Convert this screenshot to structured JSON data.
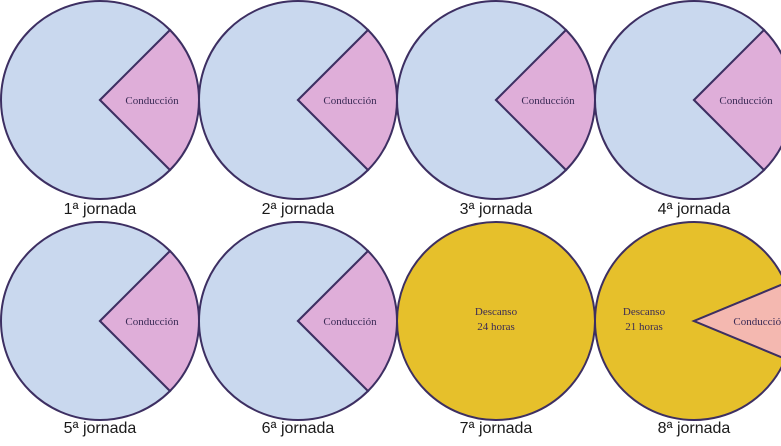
{
  "chart_data": {
    "type": "pie",
    "colors": {
      "rest_light": "#c9d8ee",
      "driving": "#dfaed9",
      "rest_weekly": "#e6c02b",
      "driving_weekly": "#f4b8b0",
      "outline": "#3d2f62"
    },
    "charts": [
      {
        "label": "1ª jornada",
        "slices": [
          {
            "name": "",
            "value": 270,
            "color": "rest_light"
          },
          {
            "name": "Conducción",
            "value": 90,
            "color": "driving"
          }
        ]
      },
      {
        "label": "2ª jornada",
        "slices": [
          {
            "name": "",
            "value": 270,
            "color": "rest_light"
          },
          {
            "name": "Conducción",
            "value": 90,
            "color": "driving"
          }
        ]
      },
      {
        "label": "3ª jornada",
        "slices": [
          {
            "name": "",
            "value": 270,
            "color": "rest_light"
          },
          {
            "name": "Conducción",
            "value": 90,
            "color": "driving"
          }
        ]
      },
      {
        "label": "4ª jornada",
        "slices": [
          {
            "name": "",
            "value": 270,
            "color": "rest_light"
          },
          {
            "name": "Conducción",
            "value": 90,
            "color": "driving"
          }
        ]
      },
      {
        "label": "5ª jornada",
        "slices": [
          {
            "name": "",
            "value": 270,
            "color": "rest_light"
          },
          {
            "name": "Conducción",
            "value": 90,
            "color": "driving"
          }
        ]
      },
      {
        "label": "6ª jornada",
        "slices": [
          {
            "name": "",
            "value": 270,
            "color": "rest_light"
          },
          {
            "name": "Conducción",
            "value": 90,
            "color": "driving"
          }
        ]
      },
      {
        "label": "7ª jornada",
        "slices": [
          {
            "name": "Descanso\n24 horas",
            "value": 360,
            "color": "rest_weekly"
          }
        ]
      },
      {
        "label": "8ª jornada",
        "slices": [
          {
            "name": "Descanso\n21 horas",
            "value": 315,
            "color": "rest_weekly"
          },
          {
            "name": "Conducción",
            "value": 45,
            "color": "driving_weekly"
          }
        ]
      }
    ]
  }
}
